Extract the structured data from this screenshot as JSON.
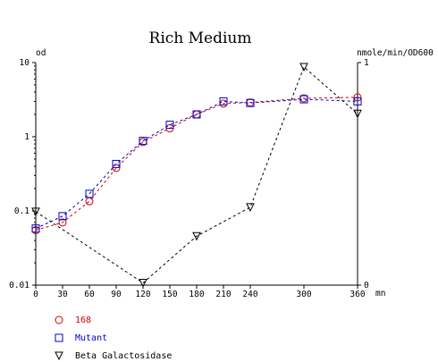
{
  "chart_data": {
    "type": "line",
    "title": "Rich Medium",
    "ylabel_left": "od",
    "ylabel_right": "nmole/min/OD600",
    "x_unit": "mn",
    "x": [
      0,
      30,
      60,
      90,
      120,
      150,
      180,
      210,
      240,
      300,
      360
    ],
    "xlim": [
      0,
      360
    ],
    "y_left_scale": "log",
    "y_left_ticks": [
      "10",
      "1",
      "0.1",
      "0.01"
    ],
    "ylim_left": [
      0.01,
      10
    ],
    "y_right_ticks": [
      "1",
      "0"
    ],
    "ylim_right": [
      0,
      1
    ],
    "grid": false,
    "legend_position": "bottom-left",
    "series": [
      {
        "name": "168",
        "axis": "left",
        "color": "#cc0000",
        "marker": "circle",
        "x": [
          0,
          30,
          60,
          90,
          120,
          150,
          180,
          210,
          240,
          300,
          360
        ],
        "values": [
          0.055,
          0.07,
          0.135,
          0.38,
          0.85,
          1.3,
          2.0,
          2.8,
          2.9,
          3.3,
          3.4
        ]
      },
      {
        "name": "Mutant",
        "axis": "left",
        "color": "#0000cc",
        "marker": "square",
        "x": [
          0,
          30,
          60,
          90,
          120,
          150,
          180,
          210,
          240,
          300,
          360
        ],
        "values": [
          0.058,
          0.085,
          0.17,
          0.43,
          0.88,
          1.45,
          2.0,
          3.0,
          2.85,
          3.2,
          3.0
        ]
      },
      {
        "name": "Beta Galactosidase",
        "axis": "right",
        "color": "#000000",
        "marker": "triangle-down",
        "x": [
          0,
          120,
          180,
          240,
          300,
          360
        ],
        "values": [
          0.33,
          0.01,
          0.22,
          0.35,
          0.98,
          0.77
        ]
      }
    ]
  }
}
